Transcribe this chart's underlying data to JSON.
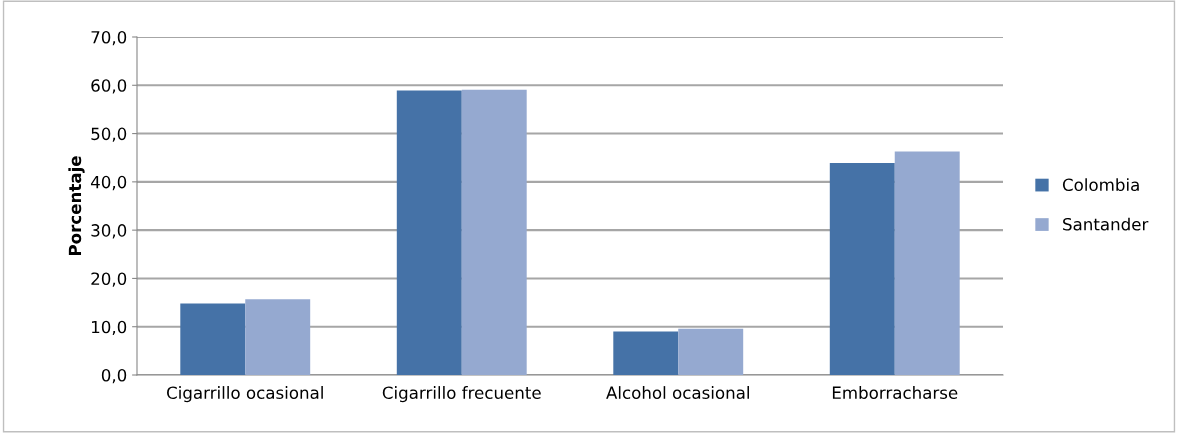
{
  "chart_data": {
    "type": "bar",
    "ylabel": "Porcentaje",
    "categories": [
      "Cigarrillo ocasional",
      "Cigarrillo frecuente",
      "Alcohol ocasional",
      "Emborracharse"
    ],
    "series": [
      {
        "name": "Colombia",
        "color": "#4572a7",
        "values": [
          14.8,
          58.9,
          9.0,
          43.9
        ]
      },
      {
        "name": "Santander",
        "color": "#95a9d0",
        "values": [
          15.7,
          59.1,
          9.6,
          46.3
        ]
      }
    ],
    "ylim": [
      0,
      70
    ],
    "yticks": [
      {
        "value": 0,
        "label": "0,0"
      },
      {
        "value": 10,
        "label": "10,0"
      },
      {
        "value": 20,
        "label": "20,0"
      },
      {
        "value": 30,
        "label": "30,0"
      },
      {
        "value": 40,
        "label": "40,0"
      },
      {
        "value": 50,
        "label": "50,0"
      },
      {
        "value": 60,
        "label": "60,0"
      },
      {
        "value": 70,
        "label": "70,0"
      }
    ],
    "grid": "y",
    "legend": "right"
  }
}
